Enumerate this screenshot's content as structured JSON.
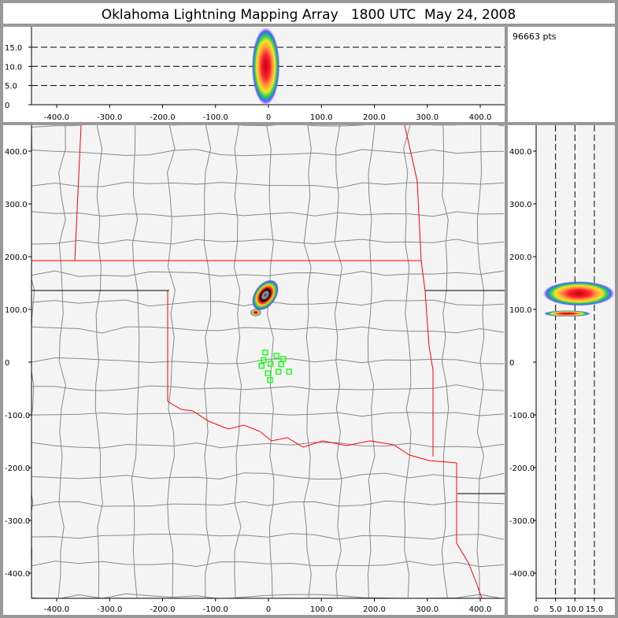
{
  "chart_data": [
    {
      "type": "heatmap",
      "title": "Oklahoma Lightning Mapping Array   1800 UTC  May 24, 2008",
      "panel": "altitude-vs-east-west",
      "x_ticks": [
        "-400.0",
        "-300.0",
        "-200.0",
        "-100.0",
        "0",
        "100.0",
        "200.0",
        "300.0",
        "400.0"
      ],
      "y_ticks": [
        "0",
        "5.0",
        "10.0",
        "15.0"
      ],
      "xlim": [
        -450,
        445
      ],
      "ylim": [
        0,
        20
      ],
      "grid": "dashed horizontal at 5, 10, 15",
      "density_cores": [
        {
          "x": -5,
          "alt": 10
        }
      ]
    },
    {
      "type": "table",
      "panel": "point-count",
      "count_label": "96663 pts"
    },
    {
      "type": "scatter",
      "panel": "plan-view-map",
      "x_ticks": [
        "-400.0",
        "-300.0",
        "-200.0",
        "-100.0",
        "0",
        "100.0",
        "200.0",
        "300.0",
        "400.0"
      ],
      "y_ticks": [
        "-400.0",
        "-300.0",
        "-200.0",
        "-100.0",
        "0",
        "100.0",
        "200.0",
        "300.0",
        "400.0"
      ],
      "xlim": [
        -450,
        445
      ],
      "ylim": [
        -445,
        450
      ],
      "density_cores": [
        {
          "x": -6,
          "y": 127
        },
        {
          "x": -24,
          "y": 94
        }
      ],
      "stations": [
        [
          -6,
          18
        ],
        [
          15,
          12
        ],
        [
          28,
          6
        ],
        [
          -9,
          4
        ],
        [
          4,
          -3
        ],
        [
          -13,
          -7
        ],
        [
          24,
          -4
        ],
        [
          19,
          -18
        ],
        [
          39,
          -18
        ],
        [
          -1,
          -21
        ],
        [
          3,
          -34
        ]
      ],
      "colors": {
        "state_border": "#ff0000",
        "county_line": "#888888",
        "station": "#00ff00",
        "background": "#f4f4f4"
      }
    },
    {
      "type": "heatmap",
      "panel": "north-south-vs-altitude",
      "x_ticks": [
        "0",
        "5.0",
        "10.0",
        "15.0"
      ],
      "y_ticks": [
        "-400.0",
        "-300.0",
        "-200.0",
        "-100.0",
        "0",
        "100.0",
        "200.0",
        "300.0",
        "400.0"
      ],
      "xlim": [
        0,
        20
      ],
      "ylim": [
        -445,
        450
      ],
      "grid": "dashed vertical at 5, 10, 15",
      "density_cores": [
        {
          "alt": 11,
          "y": 130
        },
        {
          "alt": 8,
          "y": 92
        }
      ]
    }
  ]
}
